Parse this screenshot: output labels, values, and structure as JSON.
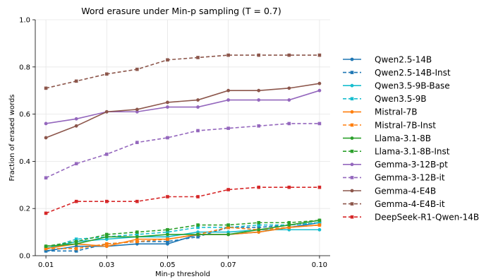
{
  "chart_data": {
    "type": "line",
    "title": "Word erasure under Min-p sampling (T = 0.7)",
    "xlabel": "Min-p threshold",
    "ylabel": "Fraction of erased words",
    "xlim": [
      0.0065,
      0.1035
    ],
    "ylim": [
      0.0,
      1.0
    ],
    "xticks": [
      0.01,
      0.03,
      0.05,
      0.07,
      0.1
    ],
    "xtick_labels": [
      "0.01",
      "0.03",
      "0.05",
      "0.07",
      "0.10"
    ],
    "yticks": [
      0.0,
      0.2,
      0.4,
      0.6,
      0.8,
      1.0
    ],
    "ytick_labels": [
      "0.0",
      "0.2",
      "0.4",
      "0.6",
      "0.8",
      "1.0"
    ],
    "grid": true,
    "legend_position": "right",
    "x": [
      0.01,
      0.02,
      0.03,
      0.04,
      0.05,
      0.06,
      0.07,
      0.08,
      0.09,
      0.1
    ],
    "series": [
      {
        "name": "Qwen2.5-14B",
        "color": "#1f77b4",
        "dash": "solid",
        "marker": "circle",
        "values": [
          0.02,
          0.04,
          0.04,
          0.05,
          0.05,
          0.09,
          0.09,
          0.1,
          0.12,
          0.14
        ]
      },
      {
        "name": "Qwen2.5-14B-Inst",
        "color": "#1f77b4",
        "dash": "dashed",
        "marker": "square",
        "values": [
          0.02,
          0.02,
          0.05,
          0.06,
          0.06,
          0.08,
          0.12,
          0.12,
          0.13,
          0.14
        ]
      },
      {
        "name": "Qwen3.5-9B-Base",
        "color": "#17becf",
        "dash": "solid",
        "marker": "circle",
        "values": [
          0.03,
          0.06,
          0.07,
          0.08,
          0.08,
          0.1,
          0.1,
          0.11,
          0.11,
          0.11
        ]
      },
      {
        "name": "Qwen3.5-9B",
        "color": "#17becf",
        "dash": "dashed",
        "marker": "square",
        "values": [
          0.03,
          0.07,
          0.08,
          0.09,
          0.1,
          0.12,
          0.12,
          0.13,
          0.13,
          0.14
        ]
      },
      {
        "name": "Mistral-7B",
        "color": "#ff7f0e",
        "dash": "solid",
        "marker": "circle",
        "values": [
          0.03,
          0.05,
          0.04,
          0.07,
          0.07,
          0.09,
          0.09,
          0.1,
          0.12,
          0.13
        ]
      },
      {
        "name": "Mistral-7B-Inst",
        "color": "#ff7f0e",
        "dash": "dashed",
        "marker": "square",
        "values": [
          0.03,
          0.03,
          0.05,
          0.06,
          0.07,
          0.09,
          0.12,
          0.11,
          0.12,
          0.13
        ]
      },
      {
        "name": "Llama-3.1-8B",
        "color": "#2ca02c",
        "dash": "solid",
        "marker": "circle",
        "values": [
          0.04,
          0.05,
          0.08,
          0.08,
          0.09,
          0.09,
          0.09,
          0.11,
          0.13,
          0.15
        ]
      },
      {
        "name": "Llama-3.1-8B-Inst",
        "color": "#2ca02c",
        "dash": "dashed",
        "marker": "square",
        "values": [
          0.04,
          0.06,
          0.09,
          0.1,
          0.11,
          0.13,
          0.13,
          0.14,
          0.14,
          0.15
        ]
      },
      {
        "name": "Gemma-3-12B-pt",
        "color": "#9467bd",
        "dash": "solid",
        "marker": "circle",
        "values": [
          0.56,
          0.58,
          0.61,
          0.61,
          0.63,
          0.63,
          0.66,
          0.66,
          0.66,
          0.7
        ]
      },
      {
        "name": "Gemma-3-12B-it",
        "color": "#9467bd",
        "dash": "dashed",
        "marker": "square",
        "values": [
          0.33,
          0.39,
          0.43,
          0.48,
          0.5,
          0.53,
          0.54,
          0.55,
          0.56,
          0.56
        ]
      },
      {
        "name": "Gemma-4-E4B",
        "color": "#8c564b",
        "dash": "solid",
        "marker": "circle",
        "values": [
          0.5,
          0.55,
          0.61,
          0.62,
          0.65,
          0.66,
          0.7,
          0.7,
          0.71,
          0.73
        ]
      },
      {
        "name": "Gemma-4-E4B-it",
        "color": "#8c564b",
        "dash": "dashed",
        "marker": "square",
        "values": [
          0.71,
          0.74,
          0.77,
          0.79,
          0.83,
          0.84,
          0.85,
          0.85,
          0.85,
          0.85
        ]
      },
      {
        "name": "DeepSeek-R1-Qwen-14B",
        "color": "#d62728",
        "dash": "dashed",
        "marker": "square",
        "values": [
          0.18,
          0.23,
          0.23,
          0.23,
          0.25,
          0.25,
          0.28,
          0.29,
          0.29,
          0.29
        ]
      }
    ]
  }
}
